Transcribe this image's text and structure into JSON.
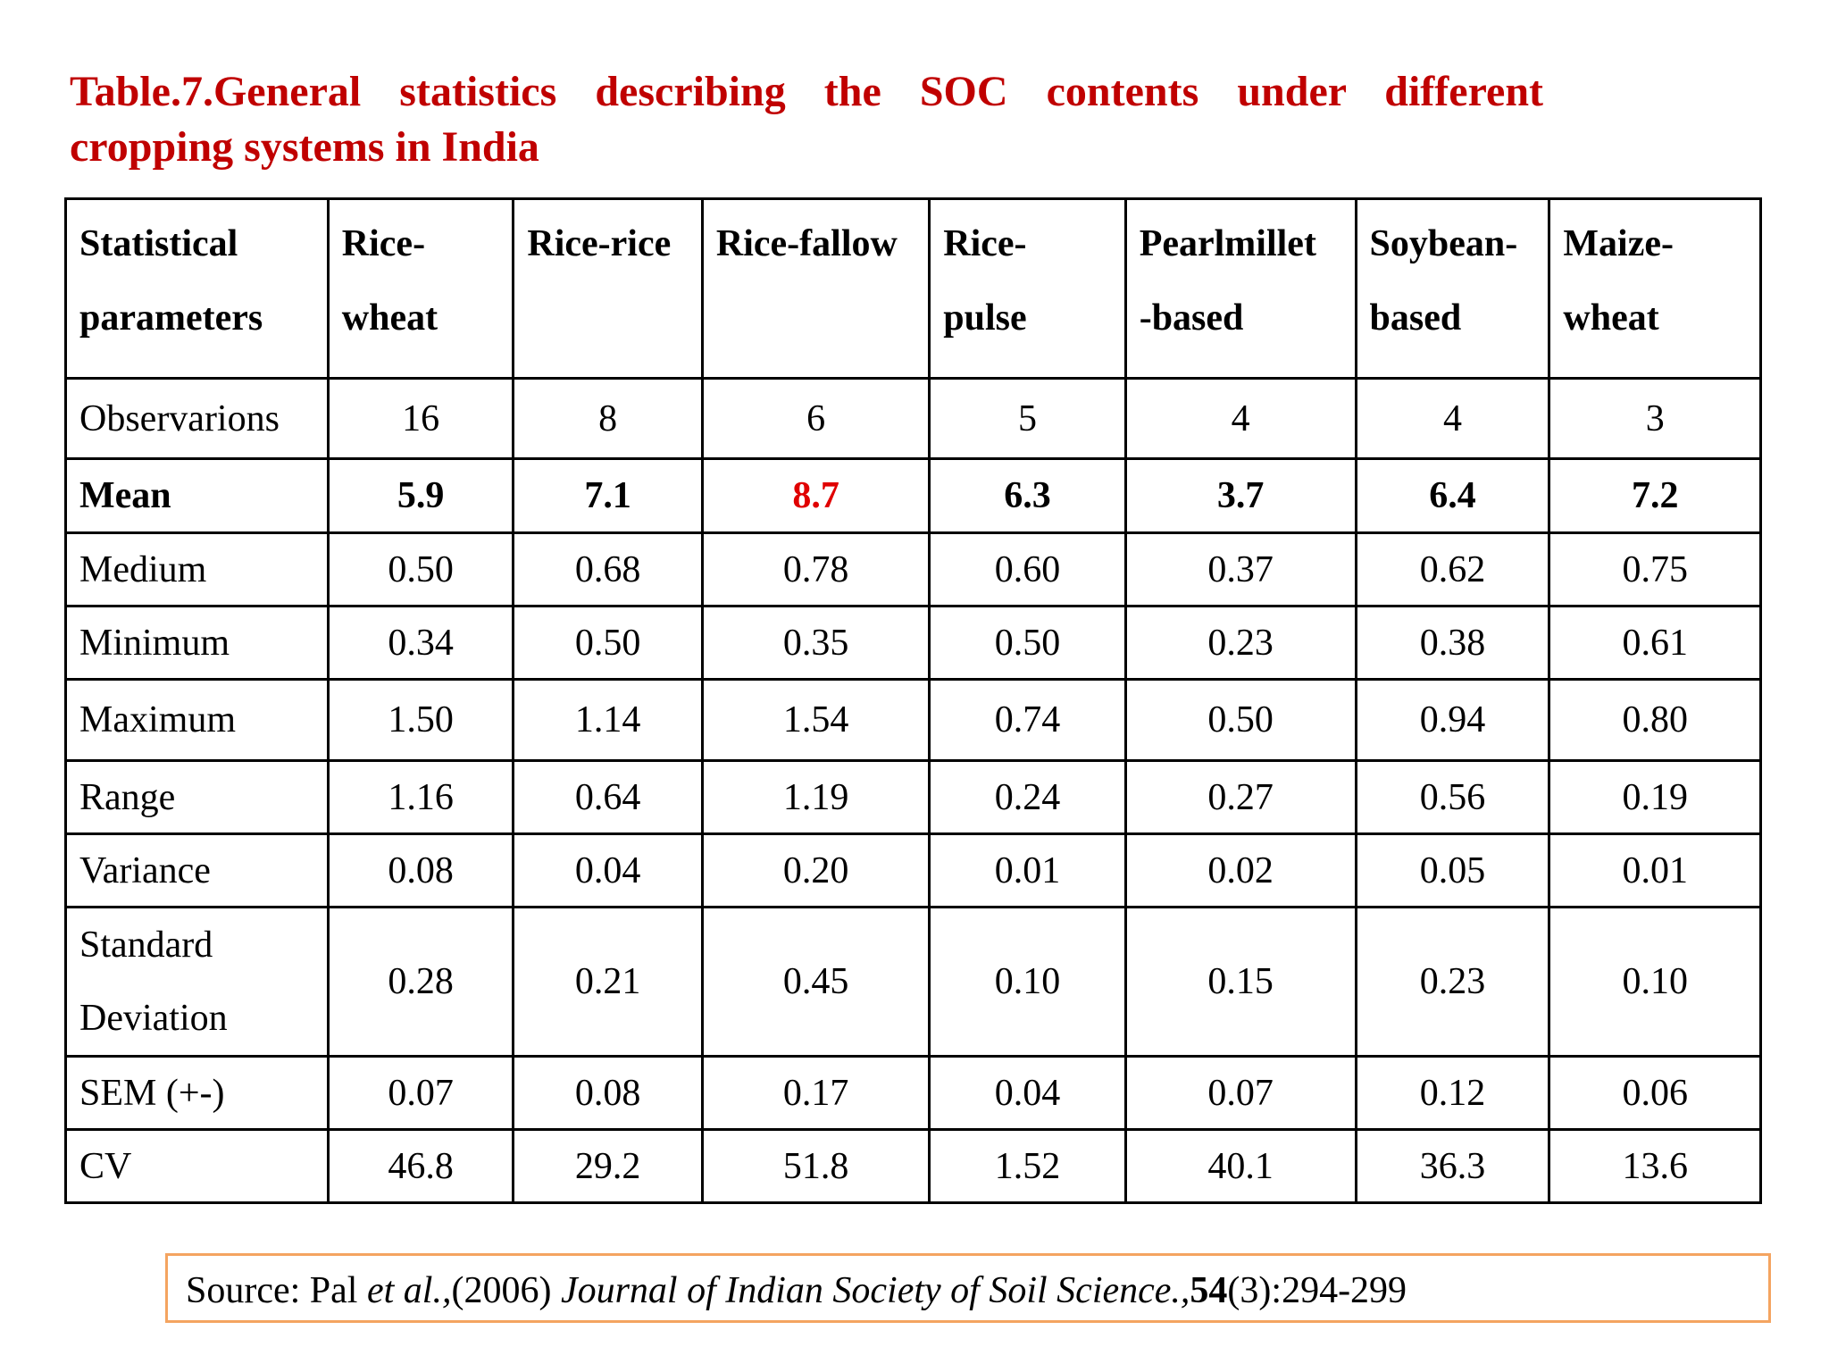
{
  "title": {
    "line1": "Table.7.General statistics describing the SOC contents under different",
    "line2": "cropping systems in India"
  },
  "table": {
    "headers": [
      "Statistical parameters",
      "Rice-wheat",
      "Rice-rice",
      "Rice-fallow",
      "Rice-pulse",
      "Pearlmillet-based",
      "Soybean-based",
      "Maize-wheat"
    ],
    "header_lines": [
      [
        "Statistical",
        "parameters"
      ],
      [
        "Rice-",
        "wheat"
      ],
      [
        "Rice-rice",
        ""
      ],
      [
        "Rice-fallow",
        ""
      ],
      [
        "Rice-",
        "pulse"
      ],
      [
        "Pearlmillet",
        "-based"
      ],
      [
        "Soybean-",
        "based"
      ],
      [
        "Maize-",
        "wheat"
      ]
    ],
    "rows": [
      {
        "label": "Observarions",
        "values": [
          "16",
          "8",
          "6",
          "5",
          "4",
          "4",
          "3"
        ]
      },
      {
        "label": "Mean",
        "values": [
          "5.9",
          "7.1",
          "8.7",
          "6.3",
          "3.7",
          "6.4",
          "7.2"
        ]
      },
      {
        "label": "Medium",
        "values": [
          "0.50",
          "0.68",
          "0.78",
          "0.60",
          "0.37",
          "0.62",
          "0.75"
        ]
      },
      {
        "label": "Minimum",
        "values": [
          "0.34",
          "0.50",
          "0.35",
          "0.50",
          "0.23",
          "0.38",
          "0.61"
        ]
      },
      {
        "label": "Maximum",
        "values": [
          "1.50",
          "1.14",
          "1.54",
          "0.74",
          "0.50",
          "0.94",
          "0.80"
        ]
      },
      {
        "label": "Range",
        "values": [
          "1.16",
          "0.64",
          "1.19",
          "0.24",
          "0.27",
          "0.56",
          "0.19"
        ]
      },
      {
        "label": "Variance",
        "values": [
          "0.08",
          "0.04",
          "0.20",
          "0.01",
          "0.02",
          "0.05",
          "0.01"
        ]
      },
      {
        "label": "Standard Deviation",
        "label_lines": [
          "Standard",
          "Deviation"
        ],
        "values": [
          "0.28",
          "0.21",
          "0.45",
          "0.10",
          "0.15",
          "0.23",
          "0.10"
        ]
      },
      {
        "label": "SEM (+-)",
        "values": [
          "0.07",
          "0.08",
          "0.17",
          "0.04",
          "0.07",
          "0.12",
          "0.06"
        ]
      },
      {
        "label": "CV",
        "values": [
          "46.8",
          "29.2",
          "51.8",
          "1.52",
          "40.1",
          "36.3",
          "13.6"
        ]
      }
    ],
    "highlight_color": "#e00000"
  },
  "source": {
    "prefix": "Source: Pal ",
    "etal": "et al.,",
    "year": "(2006) ",
    "journal": "Journal of Indian Society of Soil Science.,",
    "volume": "54",
    "pages": "(3):294-299"
  },
  "colors": {
    "title": "#c00000",
    "source_border": "#f4a460"
  }
}
